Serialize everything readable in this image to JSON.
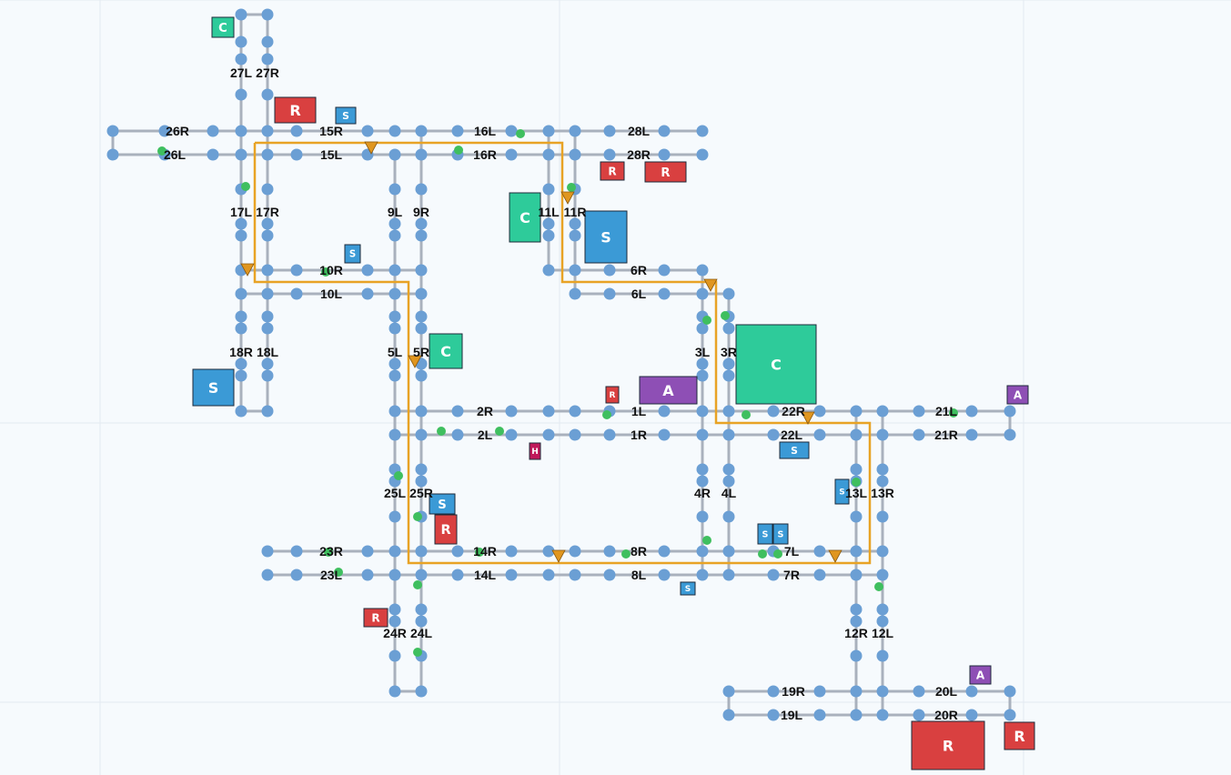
{
  "colors": {
    "background": "#f6fafd",
    "road": "#a9b1bd",
    "node": "#6b9fd4",
    "route": "#e8a325",
    "marker": "#e0961f",
    "green_dot": "#3fbf5f",
    "C": "#2ecb9a",
    "R": "#d94040",
    "S": "#3b9ad6",
    "A": "#8e4fb5",
    "H": "#c0185a"
  },
  "road_labels": [
    "26R",
    "26L",
    "15R",
    "15L",
    "16L",
    "16R",
    "28L",
    "28R",
    "10R",
    "10L",
    "6R",
    "6L",
    "2R",
    "2L",
    "1L",
    "1R",
    "22R",
    "22L",
    "21L",
    "21R",
    "23R",
    "23L",
    "14R",
    "14L",
    "8R",
    "8L",
    "7L",
    "7R",
    "19R",
    "19L",
    "20L",
    "20R",
    "27L",
    "27R",
    "17L",
    "17R",
    "9L",
    "9R",
    "11L",
    "11R",
    "18R",
    "18L",
    "5L",
    "5R",
    "3L",
    "3R",
    "25L",
    "25R",
    "4R",
    "4L",
    "13L",
    "13R",
    "24R",
    "24L",
    "12R",
    "12L"
  ],
  "buildings": [
    {
      "type": "C",
      "label": "C"
    },
    {
      "type": "R",
      "label": "R"
    },
    {
      "type": "S",
      "label": "S"
    },
    {
      "type": "S",
      "label": "S"
    },
    {
      "type": "R",
      "label": "R"
    },
    {
      "type": "R",
      "label": "R"
    },
    {
      "type": "C",
      "label": "C"
    },
    {
      "type": "S",
      "label": "S"
    },
    {
      "type": "C",
      "label": "C"
    },
    {
      "type": "S",
      "label": "S"
    },
    {
      "type": "A",
      "label": "A"
    },
    {
      "type": "R",
      "label": "R"
    },
    {
      "type": "C",
      "label": "C"
    },
    {
      "type": "A",
      "label": "A"
    },
    {
      "type": "H",
      "label": "H"
    },
    {
      "type": "S",
      "label": "S"
    },
    {
      "type": "S",
      "label": "S"
    },
    {
      "type": "S",
      "label": "S"
    },
    {
      "type": "R",
      "label": "R"
    },
    {
      "type": "S",
      "label": "S"
    },
    {
      "type": "S",
      "label": "S"
    },
    {
      "type": "S",
      "label": "S"
    },
    {
      "type": "R",
      "label": "R"
    },
    {
      "type": "A",
      "label": "A"
    },
    {
      "type": "R",
      "label": "R"
    },
    {
      "type": "R",
      "label": "R"
    }
  ],
  "route_marker_icon": "triangle-down-icon",
  "vehicle_icon": "green-dot-icon"
}
